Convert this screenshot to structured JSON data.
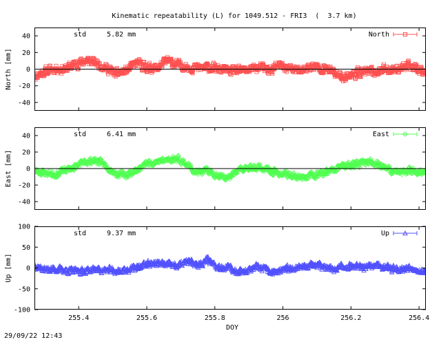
{
  "title": "Kinematic repeatability (L) for 1049.512 - FRI3  (  3.7 km)",
  "timestamp": "29/09/22 12:43",
  "chart_data": [
    {
      "type": "line",
      "name": "north",
      "ylabel": "North [mm]",
      "legend": "North",
      "legend_position": "top-right",
      "color": "#ff5050",
      "marker": "square",
      "std_label": "std",
      "std_value": "5.82 mm",
      "ylim": [
        -50,
        50
      ],
      "yticks": [
        -40,
        -20,
        0,
        20,
        40
      ],
      "ytick_labels": [
        "-40",
        "-20",
        "0",
        "20",
        "40"
      ],
      "xlim": [
        255.27,
        256.42
      ],
      "xticks": [
        255.4,
        255.6,
        255.8,
        256.0,
        256.2,
        256.4
      ],
      "xtick_labels": [
        "255.4",
        "255.6",
        "255.8",
        "256",
        "256.2",
        "256.4"
      ],
      "show_xtick_labels": false,
      "zero_line": true,
      "series_x": [
        255.27,
        255.3,
        255.33,
        255.36,
        255.39,
        255.42,
        255.45,
        255.48,
        255.51,
        255.54,
        255.57,
        255.6,
        255.63,
        255.66,
        255.69,
        255.72,
        255.75,
        255.78,
        255.81,
        255.84,
        255.87,
        255.9,
        255.93,
        255.96,
        255.99,
        256.02,
        256.05,
        256.08,
        256.11,
        256.14,
        256.17,
        256.2,
        256.23,
        256.26,
        256.29,
        256.32,
        256.35,
        256.38,
        256.42
      ],
      "series_y": [
        -8,
        -3,
        1,
        0,
        6,
        10,
        8,
        2,
        -6,
        -2,
        7,
        2,
        1,
        10,
        5,
        3,
        1,
        2,
        0,
        -2,
        -3,
        0,
        2,
        -1,
        4,
        1,
        -2,
        3,
        2,
        -2,
        -9,
        -7,
        -3,
        -4,
        -1,
        0,
        2,
        3,
        -2
      ],
      "noise": 4,
      "seed": 11
    },
    {
      "type": "line",
      "name": "east",
      "ylabel": "East [mm]",
      "legend": "East",
      "legend_position": "top-right",
      "color": "#50ff50",
      "marker": "diamond",
      "std_label": "std",
      "std_value": "6.41 mm",
      "ylim": [
        -50,
        50
      ],
      "yticks": [
        -40,
        -20,
        0,
        20,
        40
      ],
      "ytick_labels": [
        "-40",
        "-20",
        "0",
        "20",
        "40"
      ],
      "xlim": [
        255.27,
        256.42
      ],
      "xticks": [
        255.4,
        255.6,
        255.8,
        256.0,
        256.2,
        256.4
      ],
      "xtick_labels": [
        "255.4",
        "255.6",
        "255.8",
        "256",
        "256.2",
        "256.4"
      ],
      "show_xtick_labels": false,
      "zero_line": true,
      "series_x": [
        255.27,
        255.3,
        255.33,
        255.36,
        255.39,
        255.42,
        255.45,
        255.48,
        255.51,
        255.54,
        255.57,
        255.6,
        255.63,
        255.66,
        255.69,
        255.72,
        255.75,
        255.78,
        255.81,
        255.84,
        255.87,
        255.9,
        255.93,
        255.96,
        255.99,
        256.02,
        256.05,
        256.08,
        256.11,
        256.14,
        256.17,
        256.2,
        256.23,
        256.26,
        256.29,
        256.32,
        256.35,
        256.38,
        256.42
      ],
      "series_y": [
        -3,
        -5,
        -7,
        -2,
        2,
        8,
        10,
        4,
        -6,
        -8,
        -2,
        6,
        9,
        10,
        13,
        4,
        -5,
        -3,
        -8,
        -12,
        -2,
        0,
        2,
        -3,
        -6,
        -8,
        -10,
        -9,
        -6,
        -4,
        2,
        4,
        6,
        8,
        4,
        -3,
        -5,
        -2,
        -6
      ],
      "noise": 3,
      "seed": 23
    },
    {
      "type": "line",
      "name": "up",
      "ylabel": "Up [mm]",
      "legend": "Up",
      "legend_position": "top-right",
      "color": "#5050ff",
      "marker": "triangle",
      "std_label": "std",
      "std_value": "9.37 mm",
      "ylim": [
        -100,
        100
      ],
      "yticks": [
        -100,
        -50,
        0,
        50,
        100
      ],
      "ytick_labels": [
        "-100",
        "-50",
        "0",
        "50",
        "100"
      ],
      "xlim": [
        255.27,
        256.42
      ],
      "xticks": [
        255.4,
        255.6,
        255.8,
        256.0,
        256.2,
        256.4
      ],
      "xtick_labels": [
        "255.4",
        "255.6",
        "255.8",
        "256",
        "256.2",
        "256.4"
      ],
      "show_xtick_labels": true,
      "xlabel": "DOY",
      "zero_line": false,
      "series_x": [
        255.27,
        255.3,
        255.33,
        255.36,
        255.39,
        255.42,
        255.45,
        255.48,
        255.51,
        255.54,
        255.57,
        255.6,
        255.63,
        255.66,
        255.69,
        255.72,
        255.75,
        255.78,
        255.81,
        255.84,
        255.87,
        255.9,
        255.93,
        255.96,
        255.99,
        256.02,
        256.05,
        256.08,
        256.11,
        256.14,
        256.17,
        256.2,
        256.23,
        256.26,
        256.29,
        256.32,
        256.35,
        256.38,
        256.42
      ],
      "series_y": [
        8,
        -4,
        -2,
        -5,
        -8,
        -6,
        -3,
        -5,
        -8,
        -4,
        0,
        10,
        12,
        8,
        5,
        15,
        9,
        20,
        5,
        0,
        -8,
        -5,
        2,
        -8,
        -10,
        0,
        3,
        8,
        5,
        -3,
        2,
        6,
        0,
        3,
        5,
        0,
        -2,
        2,
        -12
      ],
      "noise": 6,
      "seed": 37
    }
  ]
}
